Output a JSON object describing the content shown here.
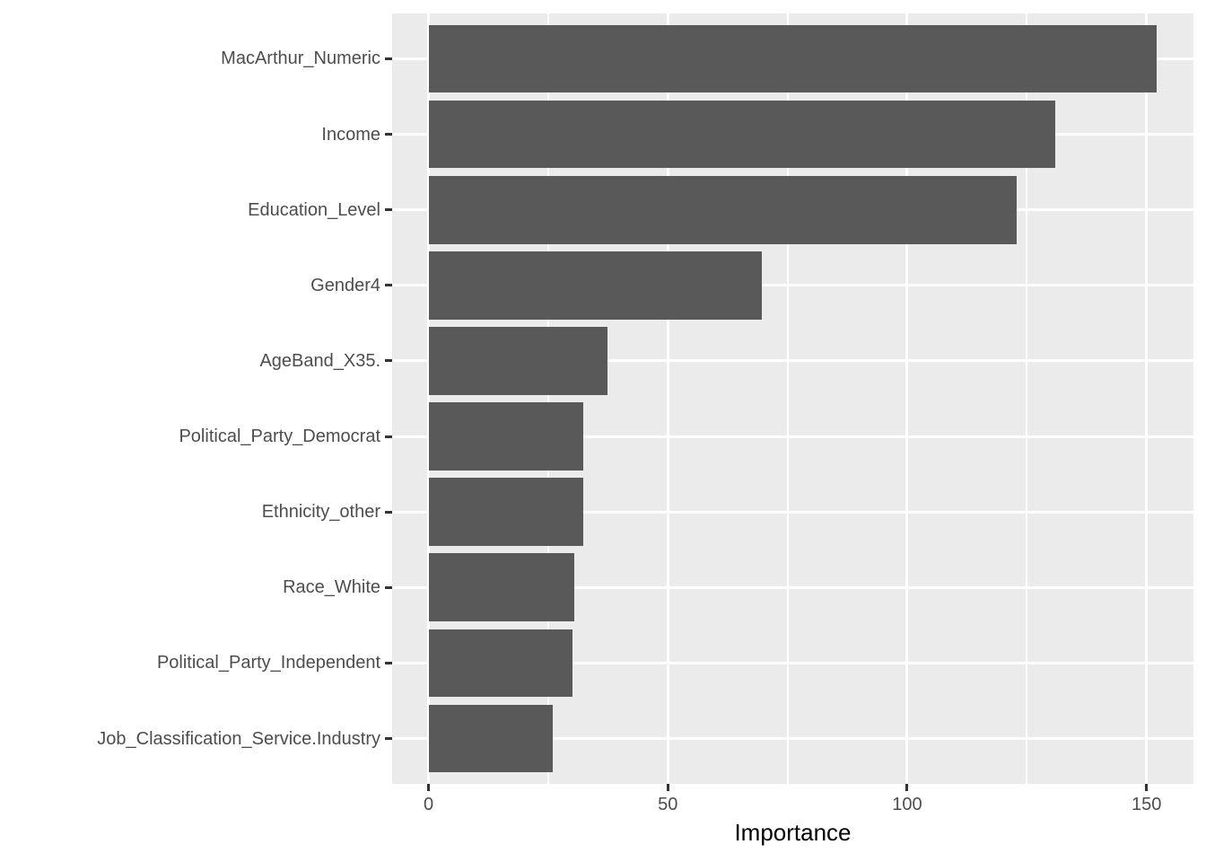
{
  "chart_data": {
    "type": "bar",
    "orientation": "horizontal",
    "title": "",
    "xlabel": "Importance",
    "ylabel": "",
    "categories": [
      "MacArthur_Numeric",
      "Income",
      "Education_Level",
      "Gender4",
      "AgeBand_X35.",
      "Political_Party_Democrat",
      "Ethnicity_other",
      "Race_White",
      "Political_Party_Independent",
      "Job_Classification_Service.Industry"
    ],
    "values": [
      152.2,
      130.9,
      122.9,
      69.7,
      37.4,
      32.4,
      32.3,
      30.5,
      30.0,
      25.9
    ],
    "xlim": [
      -7.6,
      159.8
    ],
    "x_major_ticks": [
      0,
      50,
      100,
      150
    ],
    "x_tick_labels": [
      "0",
      "50",
      "100",
      "150"
    ],
    "x_minor_gridlines": [
      25,
      75,
      125
    ],
    "bar_width_fraction": 0.9,
    "grid": "white major and minor verticals, white major horizontals, on gray panel",
    "legend_position": "none",
    "colors": {
      "bar_fill": "#595959",
      "panel_background": "#EBEBEB",
      "gridline": "#FFFFFF",
      "axis_text": "#4D4D4D",
      "axis_title": "#000000",
      "tick_mark": "#333333",
      "page_background": "#FFFFFF"
    }
  }
}
